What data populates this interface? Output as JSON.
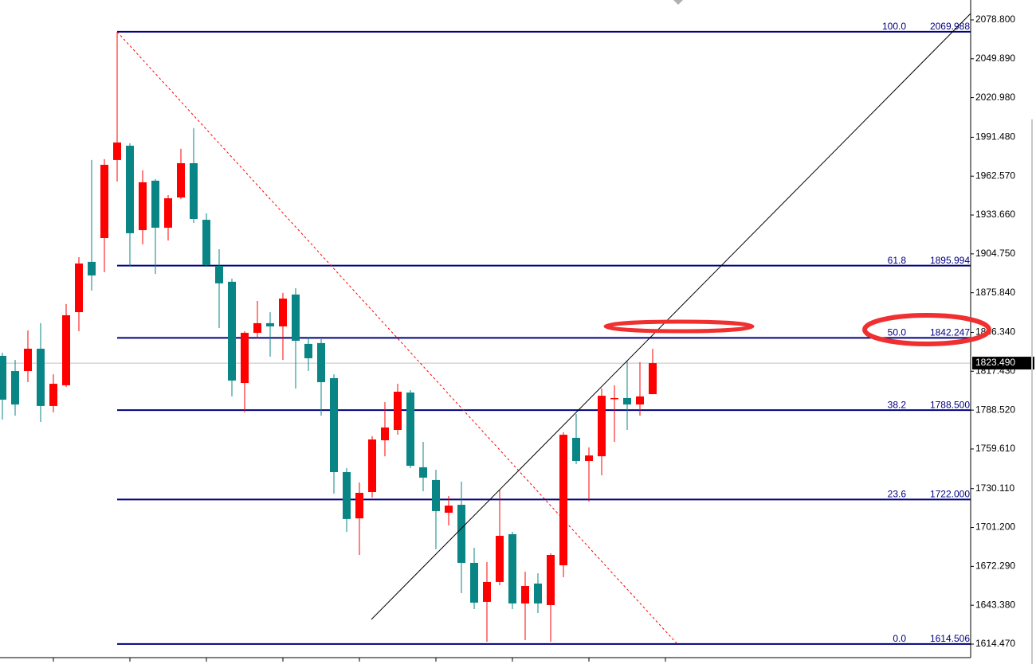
{
  "chart_data": {
    "type": "candlestick",
    "categories": [
      null,
      null,
      null,
      null,
      null,
      null,
      null,
      null,
      null,
      null,
      null,
      null,
      null,
      null,
      null,
      null,
      null,
      null,
      null,
      null,
      null,
      null,
      null,
      null,
      null,
      null,
      null,
      null,
      null,
      null,
      null,
      null,
      null,
      null,
      null,
      null,
      null,
      null,
      null,
      null,
      null,
      null,
      null,
      null,
      null,
      null,
      null,
      null,
      null,
      null,
      null,
      null
    ],
    "open": [
      1828.9,
      1817.6,
      1817.6,
      1834.2,
      1791.6,
      1807.0,
      1861.4,
      1898.8,
      1916.5,
      1974.6,
      1985.2,
      1922.4,
      1959.2,
      1924.2,
      1946.7,
      1972.2,
      1930.1,
      1895.8,
      1884.0,
      1808.7,
      1846.0,
      1853.2,
      1850.8,
      1874.5,
      1837.8,
      1838.4,
      1812.3,
      1742.4,
      1708.0,
      1727.6,
      1766.1,
      1773.8,
      1801.6,
      1746.0,
      1736.5,
      1712.2,
      1718.1,
      1674.9,
      1645.9,
      1660.7,
      1696.2,
      1644.7,
      1659.5,
      1643.5,
      1673.1,
      1767.9,
      1750.7,
      1754.2,
      1796.9,
      1797.5,
      1792.7,
      1800.4
    ],
    "high": [
      1831.2,
      1825.9,
      1847.8,
      1853.2,
      1815.2,
      1867.4,
      1902.3,
      1974.6,
      1975.2,
      2070.0,
      1987.0,
      1966.9,
      1960.4,
      1948.5,
      1982.9,
      1998.2,
      1934.9,
      1908.2,
      1886.3,
      1847.2,
      1869.7,
      1861.4,
      1875.7,
      1879.2,
      1843.1,
      1841.3,
      1815.2,
      1745.4,
      1734.7,
      1769.1,
      1794.5,
      1808.1,
      1803.4,
      1764.9,
      1744.2,
      1724.6,
      1735.3,
      1686.1,
      1675.5,
      1729.4,
      1698.0,
      1668.4,
      1667.2,
      1682.0,
      1772.0,
      1785.6,
      1760.8,
      1804.6,
      1807.0,
      1825.3,
      1824.1,
      1834.2
    ],
    "low": [
      1781.5,
      1784.4,
      1809.3,
      1779.7,
      1786.8,
      1805.8,
      1847.2,
      1877.4,
      1891.1,
      1958.6,
      1895.2,
      1911.8,
      1889.9,
      1914.7,
      1945.5,
      1927.8,
      1895.2,
      1849.6,
      1798.7,
      1786.8,
      1841.9,
      1828.3,
      1825.9,
      1804.6,
      1817.6,
      1784.4,
      1726.4,
      1698.0,
      1680.8,
      1723.5,
      1754.2,
      1770.2,
      1745.4,
      1728.2,
      1685.0,
      1702.7,
      1652.4,
      1640.5,
      1616.2,
      1658.3,
      1640.5,
      1617.4,
      1637.6,
      1616.2,
      1664.2,
      1748.4,
      1720.5,
      1740.0,
      1764.9,
      1773.8,
      1784.4,
      1800.4
    ],
    "close": [
      1796.3,
      1792.7,
      1834.2,
      1791.6,
      1808.1,
      1859.1,
      1897.6,
      1888.7,
      1971.0,
      1987.6,
      1920.1,
      1958.0,
      1924.2,
      1946.1,
      1972.2,
      1930.7,
      1896.4,
      1882.8,
      1810.5,
      1846.0,
      1853.2,
      1850.8,
      1871.5,
      1840.1,
      1827.1,
      1809.3,
      1742.4,
      1707.5,
      1727.0,
      1766.7,
      1775.6,
      1802.2,
      1747.1,
      1738.3,
      1713.4,
      1717.5,
      1674.9,
      1645.3,
      1660.7,
      1695.0,
      1644.7,
      1657.7,
      1644.7,
      1680.8,
      1770.2,
      1750.7,
      1754.8,
      1799.2,
      1797.5,
      1792.7,
      1798.7,
      1823.5
    ],
    "up_color": "#ff0000",
    "down_color": "#0a8585",
    "ylim": [
      1604.4,
      2093.6
    ],
    "yticks": [
      {
        "value": 2078.8,
        "label": "2078.800"
      },
      {
        "value": 2049.89,
        "label": "2049.890"
      },
      {
        "value": 2020.98,
        "label": "2020.980"
      },
      {
        "value": 1991.48,
        "label": "1991.480"
      },
      {
        "value": 1962.57,
        "label": "1962.570"
      },
      {
        "value": 1933.66,
        "label": "1933.660"
      },
      {
        "value": 1904.75,
        "label": "1904.750"
      },
      {
        "value": 1875.84,
        "label": "1875.840"
      },
      {
        "value": 1846.34,
        "label": "1846.340"
      },
      {
        "value": 1817.43,
        "label": "1817.430"
      },
      {
        "value": 1788.52,
        "label": "1788.520"
      },
      {
        "value": 1759.61,
        "label": "1759.610"
      },
      {
        "value": 1730.11,
        "label": "1730.110"
      },
      {
        "value": 1701.2,
        "label": "1701.200"
      },
      {
        "value": 1672.29,
        "label": "1672.290"
      },
      {
        "value": 1643.38,
        "label": "1643.380"
      },
      {
        "value": 1614.47,
        "label": "1614.470"
      }
    ],
    "fib_color": "#000080",
    "fib_levels": [
      {
        "ratio": {
          "value": 100,
          "label": "100.0"
        },
        "price": 2069.988
      },
      {
        "ratio": 61.8,
        "price": 1895.994
      },
      {
        "ratio": {
          "value": 50,
          "label": "50.0"
        },
        "price": 1842.247
      },
      {
        "ratio": 38.2,
        "price": {
          "value": 1788.5,
          "label": "1788.500"
        }
      },
      {
        "ratio": 23.6,
        "price": {
          "value": 1722,
          "label": "1722.000"
        }
      },
      {
        "ratio": {
          "value": 0,
          "label": "0.0"
        },
        "price": 1614.506
      }
    ],
    "current_price": {
      "value": 1823.49,
      "label": "1823.490"
    }
  }
}
